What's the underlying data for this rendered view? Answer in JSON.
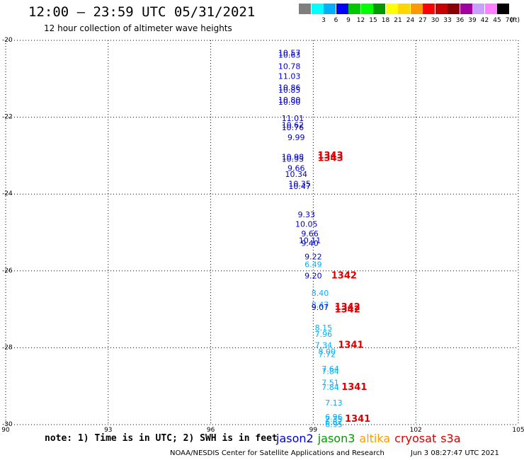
{
  "header": {
    "title": "12:00 – 23:59 UTC 05/31/2021",
    "subtitle": "12 hour collection of altimeter wave heights"
  },
  "legend": {
    "unit_label": "(ft)",
    "bins": [
      {
        "label": "",
        "color": "#7f7f7f"
      },
      {
        "label": "3",
        "color": "#00ffff"
      },
      {
        "label": "6",
        "color": "#00b0ff"
      },
      {
        "label": "9",
        "color": "#0000ff"
      },
      {
        "label": "12",
        "color": "#00c800"
      },
      {
        "label": "15",
        "color": "#00ff00"
      },
      {
        "label": "18",
        "color": "#009a00"
      },
      {
        "label": "21",
        "color": "#ffff00"
      },
      {
        "label": "24",
        "color": "#ffd700"
      },
      {
        "label": "27",
        "color": "#ff9900"
      },
      {
        "label": "30",
        "color": "#ff0000"
      },
      {
        "label": "33",
        "color": "#c80000"
      },
      {
        "label": "36",
        "color": "#8b0000"
      },
      {
        "label": "39",
        "color": "#a000a0"
      },
      {
        "label": "42",
        "color": "#c8a0ff"
      },
      {
        "label": "45",
        "color": "#ff80ff"
      },
      {
        "label": "70",
        "color": "#000000"
      }
    ]
  },
  "map": {
    "lat_ticks": [
      "-20",
      "-22",
      "-24",
      "-26",
      "-28",
      "-30"
    ],
    "lon_ticks": [
      "90",
      "93",
      "96",
      "99",
      "102",
      "105"
    ]
  },
  "observations": [
    {
      "text": "10.57",
      "lon": 98.3,
      "lat": -20.4,
      "color": "#0000cc"
    },
    {
      "text": "10.63",
      "lon": 98.3,
      "lat": -20.45,
      "color": "#0000cc"
    },
    {
      "text": "10.78",
      "lon": 98.3,
      "lat": -20.75,
      "color": "#0000cc"
    },
    {
      "text": "11.03",
      "lon": 98.3,
      "lat": -21.0,
      "color": "#0000cc"
    },
    {
      "text": "10.86",
      "lon": 98.3,
      "lat": -21.3,
      "color": "#0000cc"
    },
    {
      "text": "10.85",
      "lon": 98.3,
      "lat": -21.36,
      "color": "#0000cc"
    },
    {
      "text": "10.80",
      "lon": 98.3,
      "lat": -21.62,
      "color": "#0000cc"
    },
    {
      "text": "10.90",
      "lon": 98.3,
      "lat": -21.68,
      "color": "#0000cc"
    },
    {
      "text": "11.01",
      "lon": 98.4,
      "lat": -22.1,
      "color": "#0000cc"
    },
    {
      "text": "10.62",
      "lon": 98.4,
      "lat": -22.27,
      "color": "#0000cc"
    },
    {
      "text": "10.76",
      "lon": 98.4,
      "lat": -22.34,
      "color": "#0000cc"
    },
    {
      "text": "9.99",
      "lon": 98.5,
      "lat": -22.6,
      "color": "#0000cc"
    },
    {
      "text": "10.98",
      "lon": 98.4,
      "lat": -23.1,
      "color": "#0000cc"
    },
    {
      "text": "10.93",
      "lon": 98.4,
      "lat": -23.16,
      "color": "#0000cc"
    },
    {
      "text": "9.66",
      "lon": 98.5,
      "lat": -23.4,
      "color": "#0000cc"
    },
    {
      "text": "10.34",
      "lon": 98.5,
      "lat": -23.55,
      "color": "#0000cc"
    },
    {
      "text": "10.35",
      "lon": 98.6,
      "lat": -23.8,
      "color": "#0000cc"
    },
    {
      "text": "10.47",
      "lon": 98.6,
      "lat": -23.87,
      "color": "#0000cc"
    },
    {
      "text": "9.33",
      "lon": 98.8,
      "lat": -24.6,
      "color": "#0000cc"
    },
    {
      "text": "10.05",
      "lon": 98.8,
      "lat": -24.85,
      "color": "#0000cc"
    },
    {
      "text": "9.66",
      "lon": 98.9,
      "lat": -25.1,
      "color": "#0000cc"
    },
    {
      "text": "10.11",
      "lon": 98.9,
      "lat": -25.28,
      "color": "#0000cc"
    },
    {
      "text": "9.40",
      "lon": 98.9,
      "lat": -25.35,
      "color": "#0000cc"
    },
    {
      "text": "9.22",
      "lon": 99.0,
      "lat": -25.7,
      "color": "#0000cc"
    },
    {
      "text": "6.49",
      "lon": 99.0,
      "lat": -25.9,
      "color": "#00b0ff"
    },
    {
      "text": "9.20",
      "lon": 99.0,
      "lat": -26.2,
      "color": "#0000cc"
    },
    {
      "text": "8.40",
      "lon": 99.2,
      "lat": -26.65,
      "color": "#00b0ff"
    },
    {
      "text": "8.47",
      "lon": 99.2,
      "lat": -26.95,
      "color": "#00b0ff"
    },
    {
      "text": "9.07",
      "lon": 99.2,
      "lat": -27.02,
      "color": "#0000cc"
    },
    {
      "text": "8.15",
      "lon": 99.3,
      "lat": -27.55,
      "color": "#00b0ff"
    },
    {
      "text": "7.96",
      "lon": 99.3,
      "lat": -27.72,
      "color": "#00b0ff"
    },
    {
      "text": "7.34",
      "lon": 99.3,
      "lat": -28.0,
      "color": "#00b0ff"
    },
    {
      "text": "8.00",
      "lon": 99.4,
      "lat": -28.17,
      "color": "#00b0ff"
    },
    {
      "text": "7.72",
      "lon": 99.4,
      "lat": -28.24,
      "color": "#00b0ff"
    },
    {
      "text": "7.64",
      "lon": 99.5,
      "lat": -28.62,
      "color": "#00b0ff"
    },
    {
      "text": "7.84",
      "lon": 99.5,
      "lat": -28.68,
      "color": "#00b0ff"
    },
    {
      "text": "7.51",
      "lon": 99.5,
      "lat": -28.98,
      "color": "#00b0ff"
    },
    {
      "text": "7.84",
      "lon": 99.5,
      "lat": -29.1,
      "color": "#00b0ff"
    },
    {
      "text": "7.13",
      "lon": 99.6,
      "lat": -29.5,
      "color": "#00b0ff"
    },
    {
      "text": "6.96",
      "lon": 99.6,
      "lat": -29.87,
      "color": "#00b0ff"
    },
    {
      "text": "7.35",
      "lon": 99.6,
      "lat": -29.93,
      "color": "#00b0ff"
    },
    {
      "text": "6.62",
      "lon": 99.6,
      "lat": -30.0,
      "color": "#00b0ff"
    },
    {
      "text": "6.95",
      "lon": 99.6,
      "lat": -30.06,
      "color": "#00b0ff"
    }
  ],
  "passes": [
    {
      "text": "1343",
      "lon": 99.5,
      "lat": -23.08,
      "color": "#dd0000"
    },
    {
      "text": "1343",
      "lon": 99.5,
      "lat": -23.14,
      "color": "#dd0000"
    },
    {
      "text": "1342",
      "lon": 99.9,
      "lat": -26.2,
      "color": "#dd0000"
    },
    {
      "text": "1342",
      "lon": 100.0,
      "lat": -27.02,
      "color": "#dd0000"
    },
    {
      "text": "1342",
      "lon": 100.0,
      "lat": -27.08,
      "color": "#dd0000"
    },
    {
      "text": "1341",
      "lon": 100.1,
      "lat": -28.0,
      "color": "#dd0000"
    },
    {
      "text": "1341",
      "lon": 100.2,
      "lat": -29.1,
      "color": "#dd0000"
    },
    {
      "text": "1341",
      "lon": 100.3,
      "lat": -29.93,
      "color": "#dd0000"
    }
  ],
  "footer": {
    "note": "note: 1) Time is in UTC; 2) SWH is in feet",
    "credit": "NOAA/NESDIS Center for Satellite Applications and Research",
    "generated": "Jun  3 08:27:47 UTC 2021",
    "satellites": [
      {
        "name": "jason2",
        "color": "#0000cc"
      },
      {
        "name": "jason3",
        "color": "#009900"
      },
      {
        "name": "altika",
        "color": "#ff9900"
      },
      {
        "name": "cryosat",
        "color": "#dd0000"
      },
      {
        "name": "s3a",
        "color": "#cc0000"
      }
    ]
  }
}
